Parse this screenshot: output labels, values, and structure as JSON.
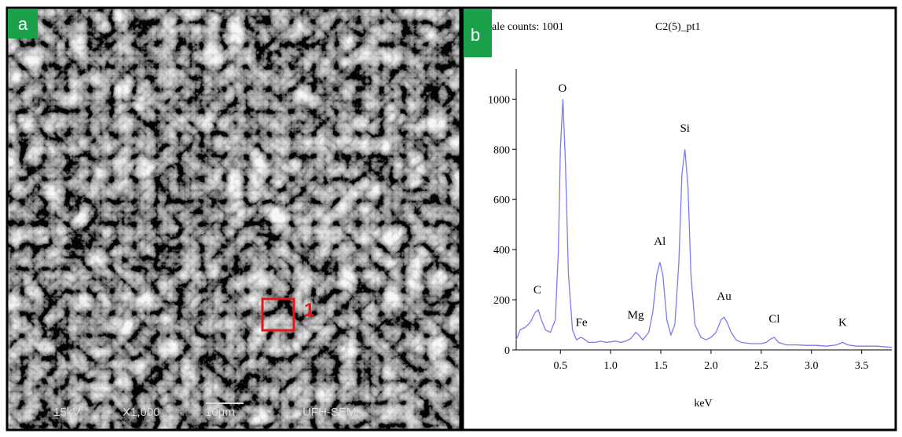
{
  "panel_a": {
    "label": "a",
    "region_label": "1",
    "info": [
      "15kV",
      "X1,000",
      "10μm",
      "UFH-SEM"
    ]
  },
  "panel_b": {
    "label": "b"
  },
  "chart_data": {
    "type": "line",
    "title": "C2(5)_pt1",
    "subtitle": "ale counts: 1001",
    "x_label": "keV",
    "color": "#7b7bef",
    "x": [
      0.06,
      0.1,
      0.15,
      0.2,
      0.25,
      0.28,
      0.31,
      0.35,
      0.4,
      0.45,
      0.48,
      0.5,
      0.525,
      0.55,
      0.58,
      0.62,
      0.66,
      0.7,
      0.73,
      0.78,
      0.85,
      0.9,
      0.95,
      1.0,
      1.05,
      1.1,
      1.15,
      1.2,
      1.25,
      1.28,
      1.32,
      1.38,
      1.42,
      1.46,
      1.49,
      1.52,
      1.56,
      1.6,
      1.64,
      1.68,
      1.71,
      1.74,
      1.77,
      1.8,
      1.84,
      1.9,
      1.95,
      2.0,
      2.05,
      2.1,
      2.13,
      2.16,
      2.2,
      2.25,
      2.3,
      2.4,
      2.5,
      2.55,
      2.6,
      2.63,
      2.67,
      2.75,
      2.85,
      2.95,
      3.05,
      3.15,
      3.25,
      3.31,
      3.36,
      3.45,
      3.55,
      3.65,
      3.75,
      3.8
    ],
    "values": [
      40,
      80,
      90,
      110,
      150,
      160,
      120,
      80,
      70,
      120,
      400,
      800,
      1000,
      750,
      300,
      80,
      40,
      50,
      45,
      30,
      30,
      35,
      30,
      32,
      35,
      30,
      35,
      45,
      70,
      60,
      40,
      70,
      150,
      300,
      350,
      300,
      120,
      60,
      100,
      350,
      700,
      800,
      650,
      300,
      100,
      50,
      40,
      50,
      70,
      120,
      130,
      110,
      70,
      40,
      30,
      25,
      25,
      30,
      45,
      50,
      30,
      20,
      20,
      18,
      18,
      15,
      20,
      30,
      20,
      15,
      15,
      15,
      12,
      10
    ],
    "xlim": [
      0.06,
      3.8
    ],
    "ylim": [
      0,
      1120
    ],
    "xticks": [
      0.5,
      {
        "value": 1,
        "label": "1.0"
      },
      1.5,
      {
        "value": 2,
        "label": "2.0"
      },
      2.5,
      {
        "value": 3,
        "label": "3.0"
      },
      3.5
    ],
    "yticks": [
      0,
      200,
      400,
      600,
      800,
      1000
    ],
    "annotations": [
      {
        "text": "O",
        "x": 0.52,
        "y": 1030
      },
      {
        "text": "C",
        "x": 0.27,
        "y": 225
      },
      {
        "text": "Fe",
        "x": 0.71,
        "y": 95
      },
      {
        "text": "Mg",
        "x": 1.25,
        "y": 125
      },
      {
        "text": "Al",
        "x": 1.49,
        "y": 420
      },
      {
        "text": "Si",
        "x": 1.74,
        "y": 870
      },
      {
        "text": "Au",
        "x": 2.13,
        "y": 200
      },
      {
        "text": "Cl",
        "x": 2.63,
        "y": 110
      },
      {
        "text": "K",
        "x": 3.31,
        "y": 95
      }
    ]
  }
}
